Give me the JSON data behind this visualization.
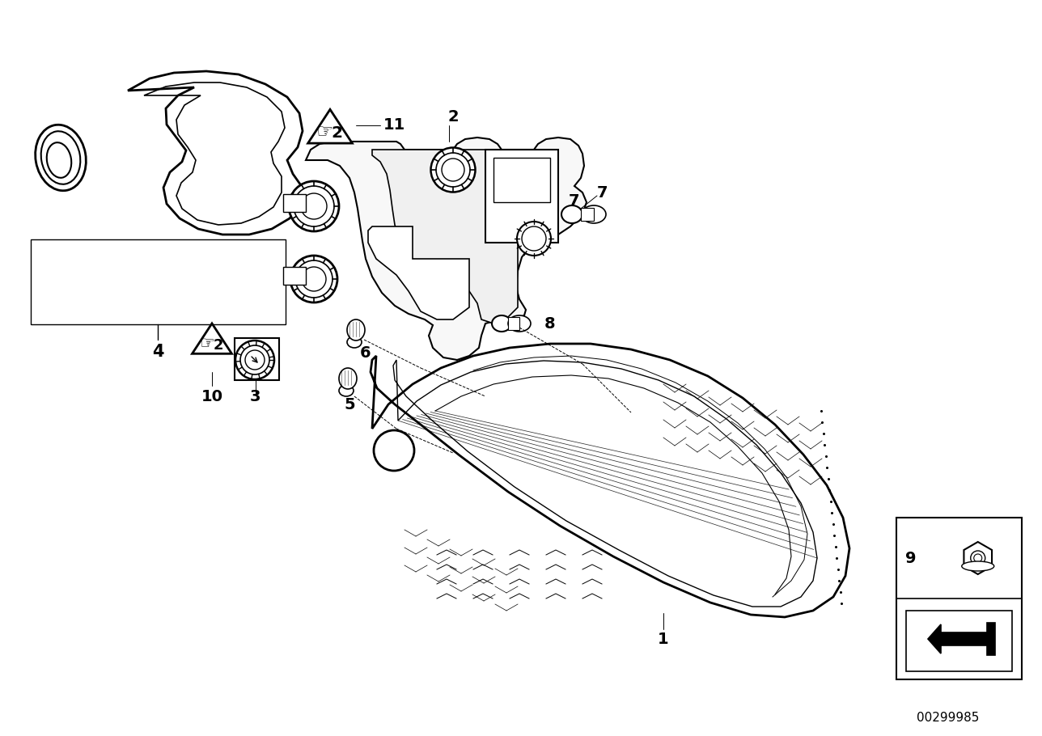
{
  "background_color": "#ffffff",
  "fig_width": 12.88,
  "fig_height": 9.1,
  "dpi": 100,
  "diagram_code": "00299985"
}
